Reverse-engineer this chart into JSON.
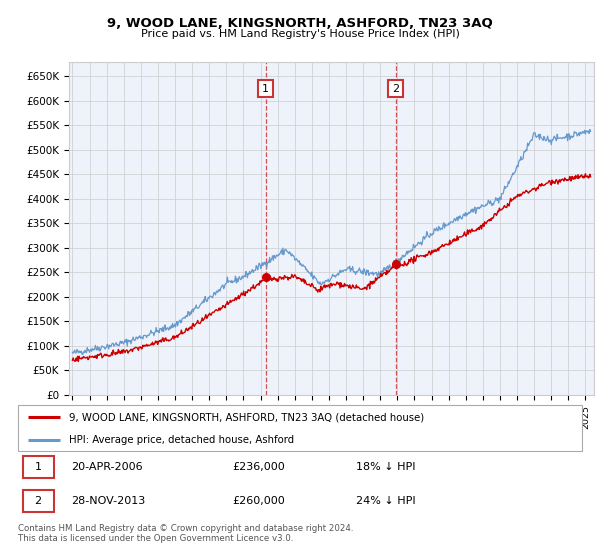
{
  "title": "9, WOOD LANE, KINGSNORTH, ASHFORD, TN23 3AQ",
  "subtitle": "Price paid vs. HM Land Registry's House Price Index (HPI)",
  "ylabel_ticks": [
    "£0",
    "£50K",
    "£100K",
    "£150K",
    "£200K",
    "£250K",
    "£300K",
    "£350K",
    "£400K",
    "£450K",
    "£500K",
    "£550K",
    "£600K",
    "£650K"
  ],
  "ytick_values": [
    0,
    50000,
    100000,
    150000,
    200000,
    250000,
    300000,
    350000,
    400000,
    450000,
    500000,
    550000,
    600000,
    650000
  ],
  "ylim": [
    0,
    680000
  ],
  "xlim_start": 1994.8,
  "xlim_end": 2025.5,
  "sale1_x": 2006.3,
  "sale2_x": 2013.91,
  "sale1_price": 236000,
  "sale2_price": 260000,
  "legend_line1": "9, WOOD LANE, KINGSNORTH, ASHFORD, TN23 3AQ (detached house)",
  "legend_line2": "HPI: Average price, detached house, Ashford",
  "row1_date": "20-APR-2006",
  "row1_price": "£236,000",
  "row1_hpi": "18% ↓ HPI",
  "row2_date": "28-NOV-2013",
  "row2_price": "£260,000",
  "row2_hpi": "24% ↓ HPI",
  "footer": "Contains HM Land Registry data © Crown copyright and database right 2024.\nThis data is licensed under the Open Government Licence v3.0.",
  "red_color": "#cc0000",
  "blue_color": "#6699cc",
  "bg_color": "#eef2fb",
  "grid_color": "#cccccc",
  "box_color": "#cc3333",
  "legend_border": "#aaaaaa"
}
